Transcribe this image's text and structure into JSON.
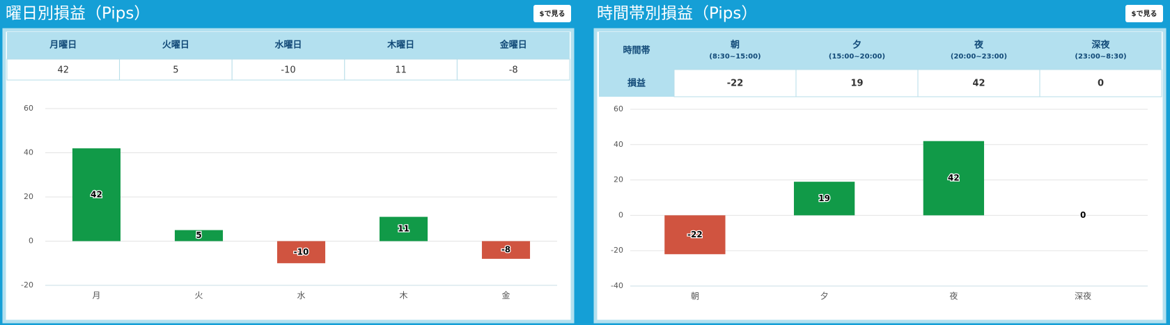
{
  "panels": [
    {
      "title": "曜日別損益（Pips）",
      "button": "$で見る",
      "table": {
        "header": [
          "月曜日",
          "火曜日",
          "水曜日",
          "木曜日",
          "金曜日"
        ],
        "rows": [
          [
            42,
            5,
            -10,
            11,
            -8
          ]
        ]
      }
    },
    {
      "title": "時間帯別損益（Pips）",
      "button": "$で見る",
      "table": {
        "corner": "時間帯",
        "header": [
          {
            "name": "朝",
            "sub": "(8:30~15:00)"
          },
          {
            "name": "夕",
            "sub": "(15:00~20:00)"
          },
          {
            "name": "夜",
            "sub": "(20:00~23:00)"
          },
          {
            "name": "深夜",
            "sub": "(23:00~8:30)"
          }
        ],
        "row_label": "損益",
        "rows": [
          [
            -22,
            19,
            42,
            0
          ]
        ]
      }
    }
  ],
  "chart_data": [
    {
      "type": "bar",
      "categories": [
        "月",
        "火",
        "水",
        "木",
        "金"
      ],
      "values": [
        42,
        5,
        -10,
        11,
        -8
      ],
      "colors": [
        "#119a48",
        "#119a48",
        "#d05440",
        "#119a48",
        "#d05440"
      ],
      "ylim": [
        -20,
        60
      ],
      "yticks": [
        -20,
        0,
        20,
        40,
        60
      ],
      "grid": true
    },
    {
      "type": "bar",
      "categories": [
        "朝",
        "夕",
        "夜",
        "深夜"
      ],
      "values": [
        -22,
        19,
        42,
        0
      ],
      "colors": [
        "#d05440",
        "#119a48",
        "#119a48",
        "#119a48"
      ],
      "ylim": [
        -40,
        60
      ],
      "yticks": [
        -40,
        -20,
        0,
        20,
        40,
        60
      ],
      "grid": true
    }
  ]
}
